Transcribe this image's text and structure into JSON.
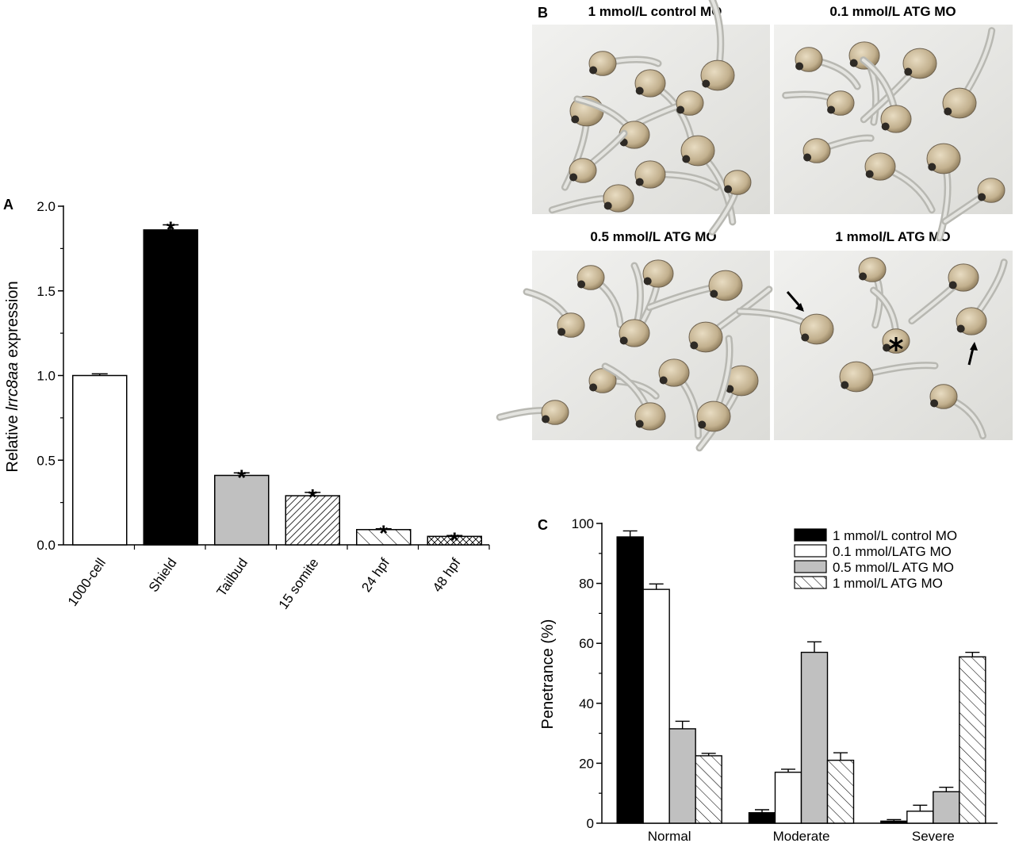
{
  "panels": {
    "A": "A",
    "B": "B",
    "C": "C"
  },
  "chart_data": [
    {
      "panel": "A",
      "type": "bar",
      "ylabel_parts": [
        "Relative ",
        "lrrc8aa",
        " expression"
      ],
      "categories": [
        "1000-cell",
        "Shield",
        "Tailbud",
        "15 somite",
        "24 hpf",
        "48 hpf"
      ],
      "values": [
        1.0,
        1.86,
        0.41,
        0.29,
        0.09,
        0.05
      ],
      "errors": [
        0.01,
        0.03,
        0.015,
        0.02,
        0.005,
        0.005
      ],
      "significance": [
        "",
        "*",
        "*",
        "*",
        "*",
        "*"
      ],
      "fills": [
        "white",
        "black",
        "gray",
        "dense-diagonal",
        "sparse-diagonal",
        "crosshatch"
      ],
      "ylim": [
        0,
        2.0
      ],
      "yticks": [
        "0.0",
        "0.5",
        "1.0",
        "1.5",
        "2.0"
      ],
      "ytick_values": [
        0,
        0.5,
        1.0,
        1.5,
        2.0
      ]
    },
    {
      "panel": "C",
      "type": "bar",
      "ylabel": "Penetrance (%)",
      "categories": [
        "Normal",
        "Moderate",
        "Severe"
      ],
      "series": [
        {
          "name": "1 mmol/L control MO",
          "values": [
            95.5,
            3.5,
            0.7
          ],
          "errors": [
            2.0,
            1.0,
            0.5
          ],
          "fill": "black"
        },
        {
          "name": "0.1 mmol/LATG MO",
          "values": [
            78.0,
            17.0,
            4.0
          ],
          "errors": [
            1.8,
            1.0,
            2.0
          ],
          "fill": "white"
        },
        {
          "name": "0.5 mmol/L ATG MO",
          "values": [
            31.5,
            57.0,
            10.5
          ],
          "errors": [
            2.5,
            3.5,
            1.5
          ],
          "fill": "gray"
        },
        {
          "name": "1 mmol/L ATG MO",
          "values": [
            22.5,
            21.0,
            55.5
          ],
          "errors": [
            0.8,
            2.5,
            1.5
          ],
          "fill": "diagonal"
        }
      ],
      "ylim": [
        0,
        100
      ],
      "yticks": [
        "0",
        "20",
        "40",
        "60",
        "80",
        "100"
      ],
      "ytick_values": [
        0,
        20,
        40,
        60,
        80,
        100
      ],
      "legend_position": "top-right"
    }
  ],
  "photos": [
    {
      "title": "1 mmol/L control MO"
    },
    {
      "title": "0.1 mmol/L ATG MO"
    },
    {
      "title": "0.5 mmol/L ATG MO"
    },
    {
      "title": "1 mmol/L ATG MO"
    }
  ]
}
